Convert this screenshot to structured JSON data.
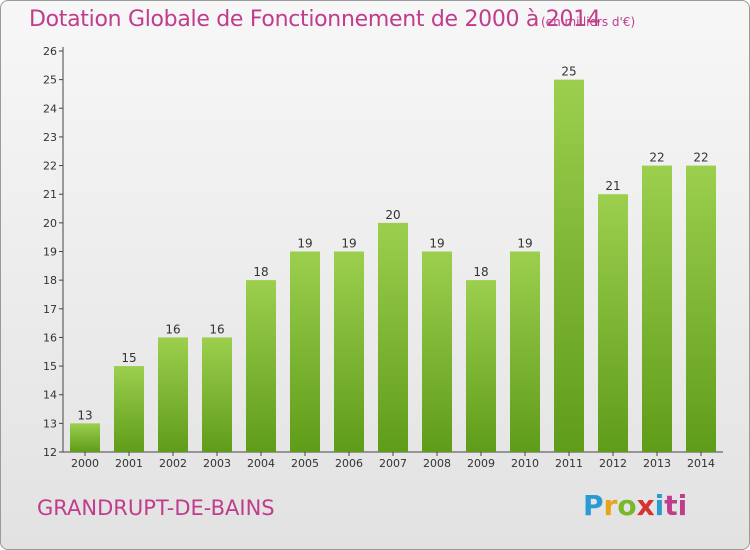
{
  "header": {
    "title": "Dotation Globale de Fonctionnement de 2000 à 2014",
    "unit": "(en milliers d'€)"
  },
  "footer": {
    "commune": "GRANDRUPT-DE-BAINS",
    "brand": [
      "P",
      "r",
      "o",
      "x",
      "i",
      "ti"
    ]
  },
  "colors": {
    "title": "#c03c8c",
    "bar_light": "#9ccf4e",
    "bar_dark": "#5f9c1a"
  },
  "chart_data": {
    "type": "bar",
    "title": "Dotation Globale de Fonctionnement de 2000 à 2014",
    "subtitle": "(en milliers d'€)",
    "xlabel": "",
    "ylabel": "",
    "categories": [
      "2000",
      "2001",
      "2002",
      "2003",
      "2004",
      "2005",
      "2006",
      "2007",
      "2008",
      "2009",
      "2010",
      "2011",
      "2012",
      "2013",
      "2014"
    ],
    "values": [
      13,
      15,
      16,
      16,
      18,
      19,
      19,
      20,
      19,
      18,
      19,
      25,
      21,
      22,
      22
    ],
    "ylim": [
      12,
      26
    ],
    "yticks": [
      12,
      13,
      14,
      15,
      16,
      17,
      18,
      19,
      20,
      21,
      22,
      23,
      24,
      25,
      26
    ],
    "grid": false,
    "legend": "none"
  }
}
